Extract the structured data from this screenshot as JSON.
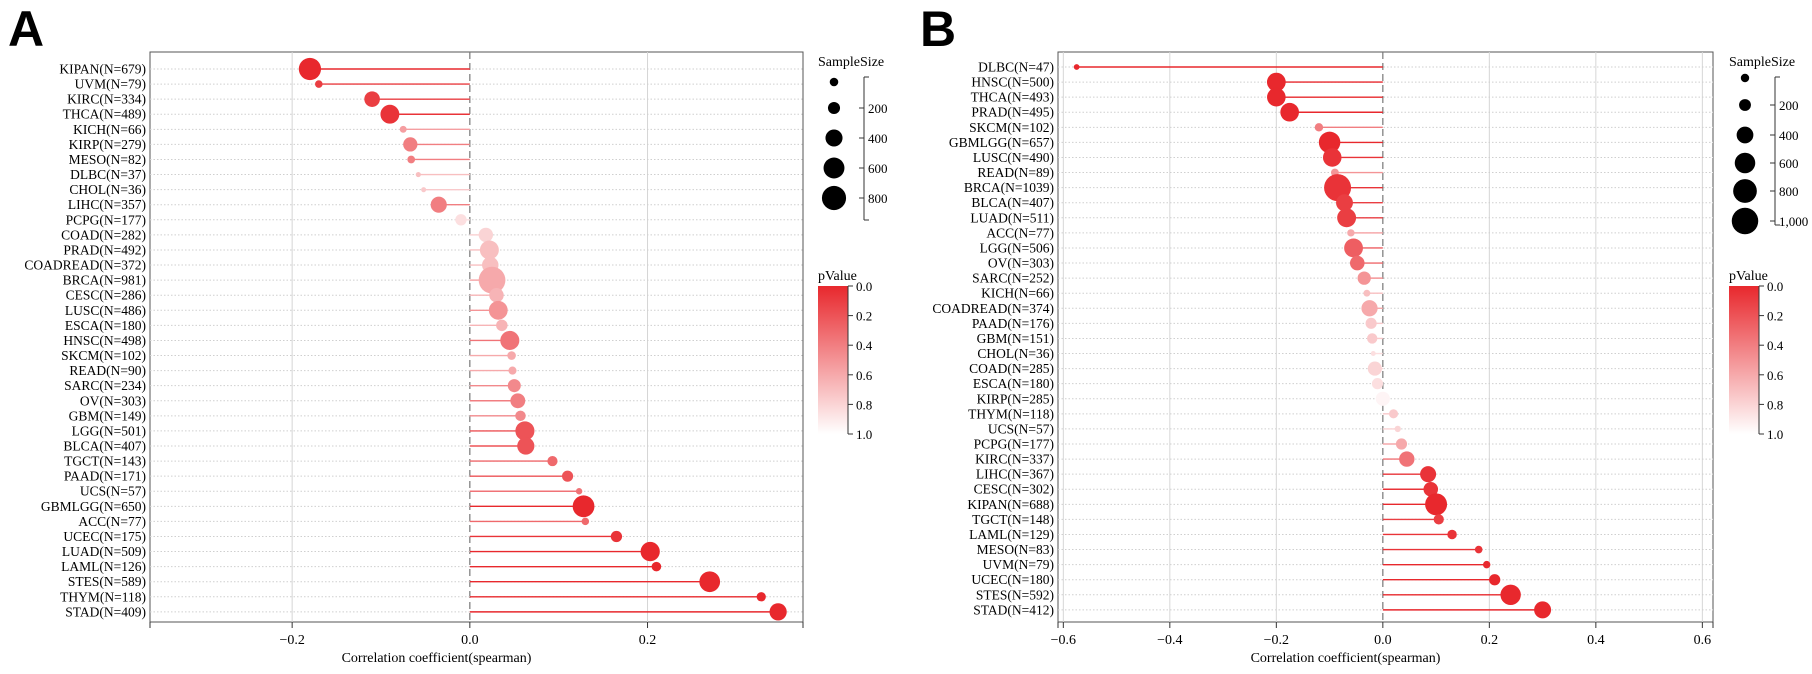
{
  "chart_data": [
    {
      "panel": "A",
      "type": "scatter",
      "style": "lollipop",
      "xlabel": "Correlation coefficient(spearman)",
      "xlim": [
        -0.36,
        0.375
      ],
      "xticks": [
        -0.2,
        0.0,
        0.2
      ],
      "xtick_labels": [
        "−0.2",
        "0.0",
        "0.2"
      ],
      "grid": true,
      "categories": [
        "KIPAN(N=679)",
        "UVM(N=79)",
        "KIRC(N=334)",
        "THCA(N=489)",
        "KICH(N=66)",
        "KIRP(N=279)",
        "MESO(N=82)",
        "DLBC(N=37)",
        "CHOL(N=36)",
        "LIHC(N=357)",
        "PCPG(N=177)",
        "COAD(N=282)",
        "PRAD(N=492)",
        "COADREAD(N=372)",
        "BRCA(N=981)",
        "CESC(N=286)",
        "LUSC(N=486)",
        "ESCA(N=180)",
        "HNSC(N=498)",
        "SKCM(N=102)",
        "READ(N=90)",
        "SARC(N=234)",
        "OV(N=303)",
        "GBM(N=149)",
        "LGG(N=501)",
        "BLCA(N=407)",
        "TGCT(N=143)",
        "PAAD(N=171)",
        "UCS(N=57)",
        "GBMLGG(N=650)",
        "ACC(N=77)",
        "UCEC(N=175)",
        "LUAD(N=509)",
        "LAML(N=126)",
        "STES(N=589)",
        "THYM(N=118)",
        "STAD(N=409)"
      ],
      "correlation": [
        -0.18,
        -0.17,
        -0.11,
        -0.09,
        -0.075,
        -0.067,
        -0.066,
        -0.058,
        -0.052,
        -0.035,
        -0.01,
        0.018,
        0.022,
        0.023,
        0.025,
        0.03,
        0.032,
        0.036,
        0.045,
        0.047,
        0.048,
        0.05,
        0.054,
        0.057,
        0.062,
        0.063,
        0.093,
        0.11,
        0.123,
        0.128,
        0.13,
        0.165,
        0.203,
        0.21,
        0.27,
        0.328,
        0.347
      ],
      "sample_size": [
        679,
        79,
        334,
        489,
        66,
        279,
        82,
        37,
        36,
        357,
        177,
        282,
        492,
        372,
        981,
        286,
        486,
        180,
        498,
        102,
        90,
        234,
        303,
        149,
        501,
        407,
        143,
        171,
        57,
        650,
        77,
        175,
        509,
        126,
        589,
        118,
        409
      ],
      "p_value": [
        0.0,
        0.1,
        0.1,
        0.05,
        0.55,
        0.4,
        0.4,
        0.7,
        0.75,
        0.4,
        0.85,
        0.8,
        0.7,
        0.7,
        0.6,
        0.65,
        0.5,
        0.65,
        0.35,
        0.6,
        0.6,
        0.45,
        0.4,
        0.45,
        0.2,
        0.2,
        0.3,
        0.2,
        0.35,
        0.0,
        0.3,
        0.05,
        0.0,
        0.0,
        0.0,
        0.0,
        0.0
      ],
      "size_legend": {
        "title": "SampleSize",
        "ticks": [
          "200",
          "400",
          "600",
          "800"
        ],
        "values": [
          100,
          200,
          400,
          600,
          800
        ]
      },
      "color_legend": {
        "title": "pValue",
        "ticks": [
          "0.0",
          "0.2",
          "0.4",
          "0.6",
          "0.8",
          "1.0"
        ]
      }
    },
    {
      "panel": "B",
      "type": "scatter",
      "style": "lollipop",
      "xlabel": "Correlation coefficient(spearman)",
      "xlim": [
        -0.61,
        0.62
      ],
      "xticks": [
        -0.6,
        -0.4,
        -0.2,
        0.0,
        0.2,
        0.4,
        0.6
      ],
      "xtick_labels": [
        "−0.6",
        "−0.4",
        "−0.2",
        "0.0",
        "0.2",
        "0.4",
        "0.6"
      ],
      "grid": true,
      "categories": [
        "DLBC(N=47)",
        "HNSC(N=500)",
        "THCA(N=493)",
        "PRAD(N=495)",
        "SKCM(N=102)",
        "GBMLGG(N=657)",
        "LUSC(N=490)",
        "READ(N=89)",
        "BRCA(N=1039)",
        "BLCA(N=407)",
        "LUAD(N=511)",
        "ACC(N=77)",
        "LGG(N=506)",
        "OV(N=303)",
        "SARC(N=252)",
        "KICH(N=66)",
        "COADREAD(N=374)",
        "PAAD(N=176)",
        "GBM(N=151)",
        "CHOL(N=36)",
        "COAD(N=285)",
        "ESCA(N=180)",
        "KIRP(N=285)",
        "THYM(N=118)",
        "UCS(N=57)",
        "PCPG(N=177)",
        "KIRC(N=337)",
        "LIHC(N=367)",
        "CESC(N=302)",
        "KIPAN(N=688)",
        "TGCT(N=148)",
        "LAML(N=129)",
        "MESO(N=83)",
        "UVM(N=79)",
        "UCEC(N=180)",
        "STES(N=592)",
        "STAD(N=412)"
      ],
      "correlation": [
        -0.575,
        -0.2,
        -0.2,
        -0.175,
        -0.12,
        -0.1,
        -0.095,
        -0.09,
        -0.085,
        -0.072,
        -0.068,
        -0.06,
        -0.055,
        -0.048,
        -0.035,
        -0.03,
        -0.025,
        -0.022,
        -0.02,
        -0.018,
        -0.015,
        -0.01,
        0.0,
        0.02,
        0.028,
        0.035,
        0.045,
        0.085,
        0.09,
        0.1,
        0.105,
        0.13,
        0.18,
        0.195,
        0.21,
        0.24,
        0.3
      ],
      "sample_size": [
        47,
        500,
        493,
        495,
        102,
        657,
        490,
        89,
        1039,
        407,
        511,
        77,
        506,
        303,
        252,
        66,
        374,
        176,
        151,
        36,
        285,
        180,
        285,
        118,
        57,
        177,
        337,
        367,
        302,
        688,
        148,
        129,
        83,
        79,
        180,
        592,
        412
      ],
      "p_value": [
        0.0,
        0.0,
        0.0,
        0.0,
        0.4,
        0.0,
        0.05,
        0.5,
        0.05,
        0.1,
        0.1,
        0.6,
        0.25,
        0.3,
        0.5,
        0.7,
        0.6,
        0.75,
        0.75,
        0.85,
        0.8,
        0.85,
        0.95,
        0.75,
        0.8,
        0.6,
        0.35,
        0.05,
        0.05,
        0.0,
        0.1,
        0.05,
        0.05,
        0.0,
        0.0,
        0.0,
        0.0
      ],
      "size_legend": {
        "title": "SampleSize",
        "ticks": [
          "200",
          "400",
          "600",
          "800",
          "1,000"
        ],
        "values": [
          100,
          200,
          400,
          600,
          800,
          1000
        ]
      },
      "color_legend": {
        "title": "pValue",
        "ticks": [
          "0.0",
          "0.2",
          "0.4",
          "0.6",
          "0.8",
          "1.0"
        ]
      }
    }
  ]
}
